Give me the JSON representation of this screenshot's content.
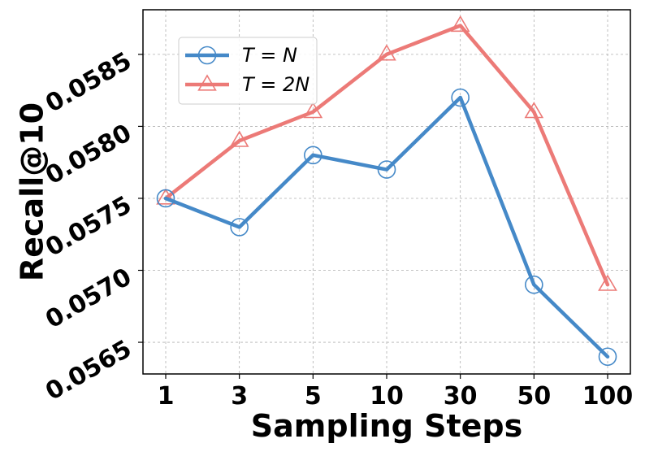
{
  "chart_data": {
    "type": "line",
    "title": "",
    "xlabel": "Sampling Steps",
    "ylabel": "Recall@10",
    "categories": [
      "1",
      "3",
      "5",
      "10",
      "30",
      "50",
      "100"
    ],
    "ylim": [
      0.05628,
      0.05881
    ],
    "yticks": [
      "0.0565",
      "0.0570",
      "0.0575",
      "0.0580",
      "0.0585"
    ],
    "grid": true,
    "legend_position": "top-left",
    "series": [
      {
        "name": "T = N",
        "marker": "circle",
        "color": "#4589c8",
        "values": [
          0.0575,
          0.0573,
          0.0578,
          0.0577,
          0.0582,
          0.0569,
          0.0564
        ]
      },
      {
        "name": "T = 2N",
        "marker": "triangle",
        "color": "#ec7a77",
        "values": [
          0.0575,
          0.0579,
          0.0581,
          0.0585,
          0.0587,
          0.0581,
          0.0569
        ]
      }
    ]
  }
}
